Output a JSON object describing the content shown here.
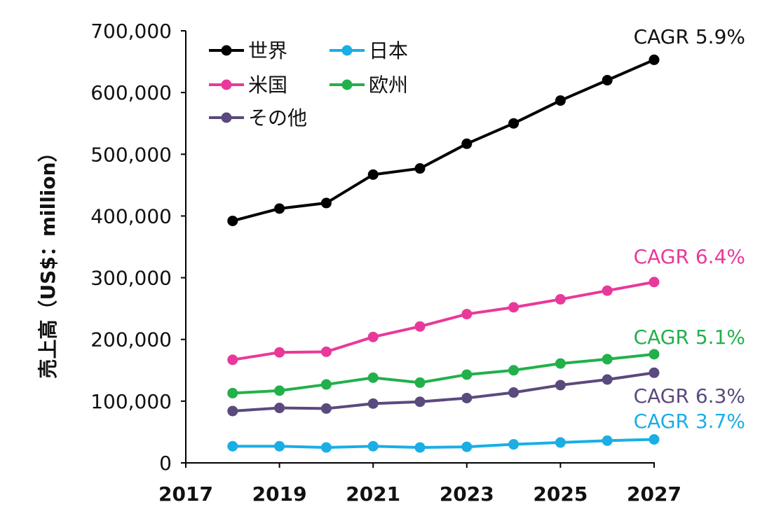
{
  "chart_data": {
    "type": "line",
    "ylabel": "売上高（US$：million）",
    "xlim": [
      2017,
      2027
    ],
    "ylim": [
      0,
      700000
    ],
    "x_ticks": [
      2017,
      2019,
      2021,
      2023,
      2025,
      2027
    ],
    "y_ticks": [
      0,
      100000,
      200000,
      300000,
      400000,
      500000,
      600000,
      700000
    ],
    "y_tick_labels": [
      "0",
      "100,000",
      "200,000",
      "300,000",
      "400,000",
      "500,000",
      "600,000",
      "700,000"
    ],
    "x": [
      2018,
      2019,
      2020,
      2021,
      2022,
      2023,
      2024,
      2025,
      2026,
      2027
    ],
    "legend_position": "top-left",
    "grid": false,
    "series": [
      {
        "key": "world",
        "name": "世界",
        "color": "#000000",
        "cagr": "CAGR 5.9%",
        "values": [
          392000,
          412000,
          421000,
          467000,
          477000,
          517000,
          550000,
          587000,
          620000,
          653000
        ]
      },
      {
        "key": "japan",
        "name": "日本",
        "color": "#1aaee5",
        "cagr": "CAGR 3.7%",
        "values": [
          27000,
          27000,
          25000,
          27000,
          25000,
          26000,
          30000,
          33000,
          36000,
          38000
        ]
      },
      {
        "key": "us",
        "name": "米国",
        "color": "#e8399a",
        "cagr": "CAGR 6.4%",
        "values": [
          167000,
          179000,
          180000,
          204000,
          221000,
          241000,
          252000,
          265000,
          279000,
          293000
        ]
      },
      {
        "key": "europe",
        "name": "欧州",
        "color": "#22b04b",
        "cagr": "CAGR 5.1%",
        "values": [
          113000,
          117000,
          127000,
          138000,
          130000,
          143000,
          150000,
          161000,
          168000,
          176000
        ]
      },
      {
        "key": "other",
        "name": "その他",
        "color": "#5b4a7d",
        "cagr": "CAGR 6.3%",
        "values": [
          84000,
          89000,
          88000,
          96000,
          99000,
          105000,
          114000,
          126000,
          135000,
          146000
        ]
      }
    ]
  }
}
